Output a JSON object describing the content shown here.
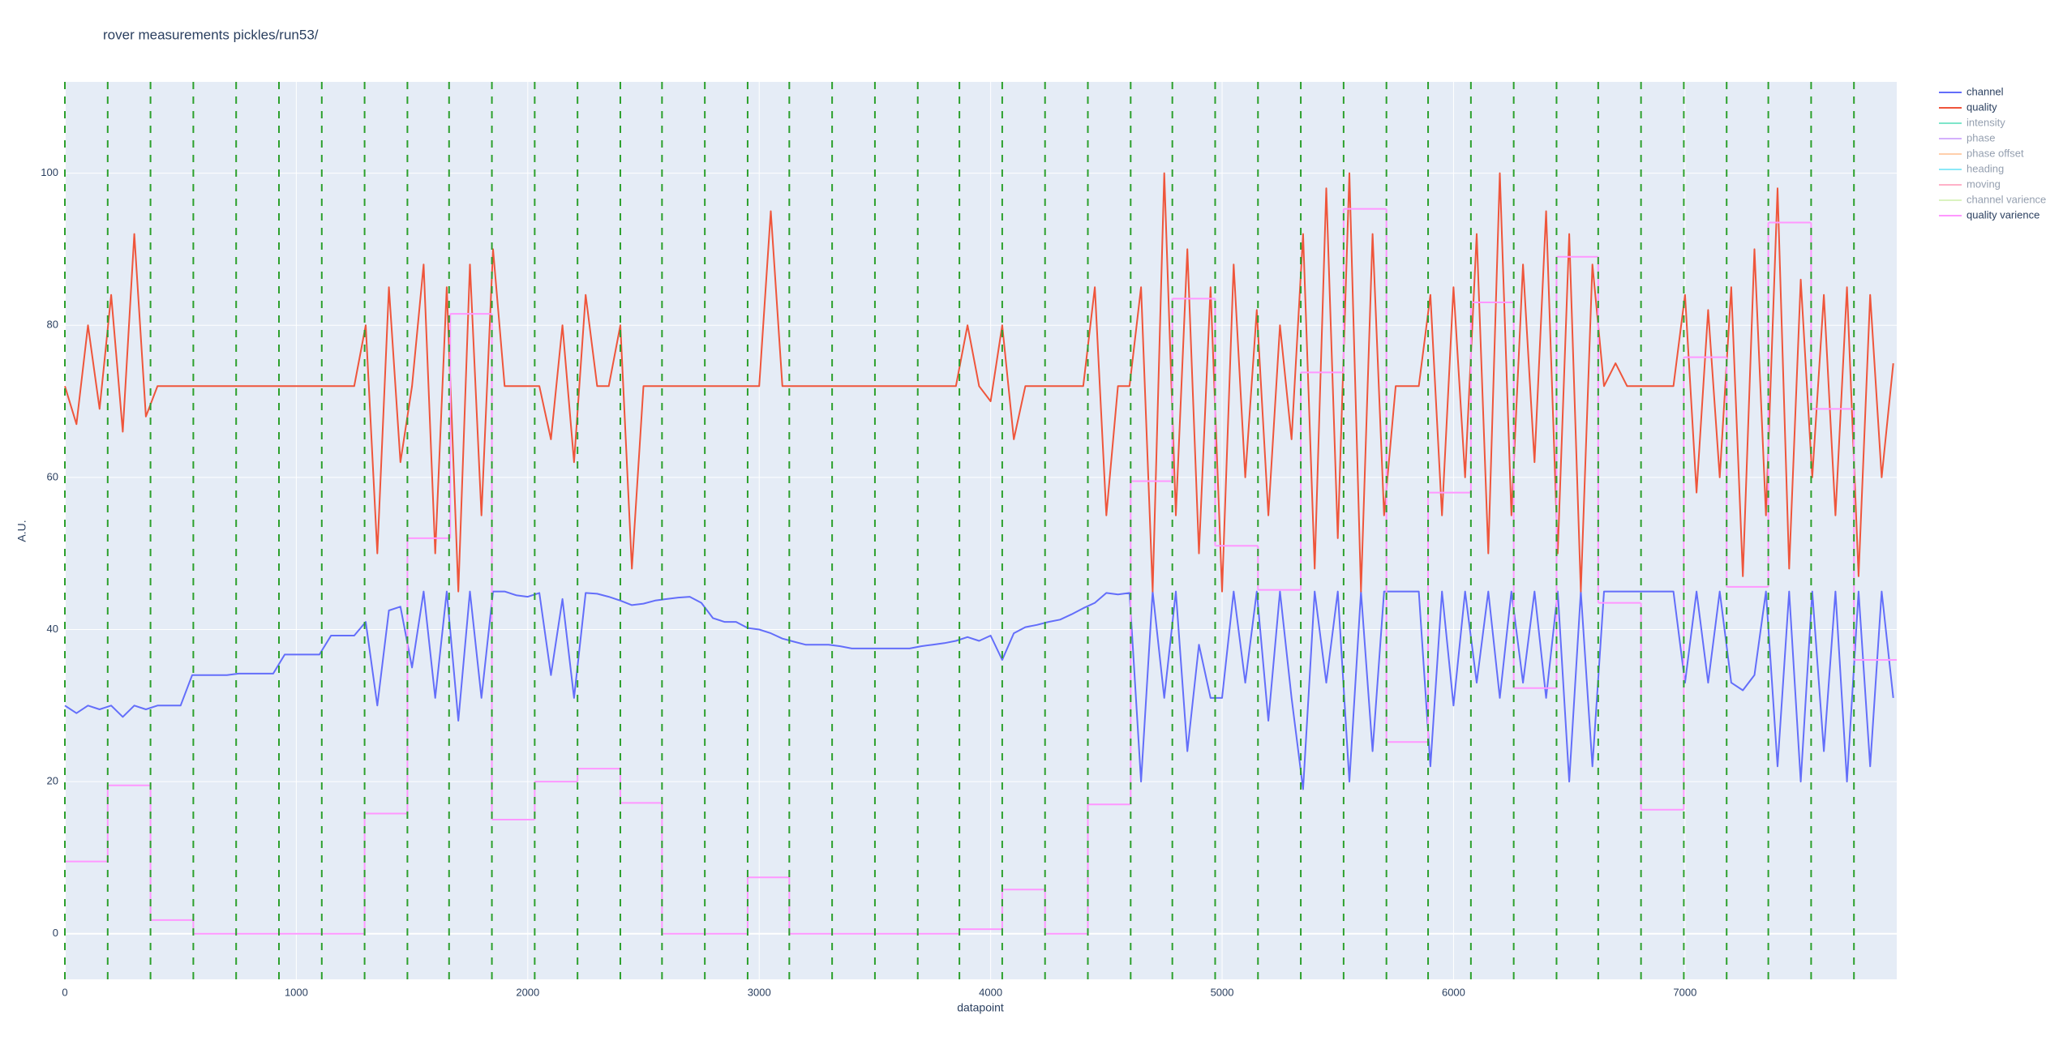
{
  "chart_data": {
    "type": "line",
    "title": "rover measurements pickles/run53/",
    "x_label": "datapoint",
    "y_label": "A.U.",
    "xlim": [
      0,
      7915
    ],
    "ylim": [
      -6,
      112
    ],
    "xticks": [
      0,
      1000,
      2000,
      3000,
      4000,
      5000,
      6000,
      7000
    ],
    "yticks": [
      0,
      20,
      40,
      60,
      80,
      100
    ],
    "grid": true,
    "legend": "right",
    "vlines": [
      0,
      185,
      370,
      555,
      740,
      925,
      1110,
      1295,
      1480,
      1660,
      1845,
      2030,
      2215,
      2400,
      2580,
      2765,
      2950,
      3130,
      3315,
      3500,
      3685,
      3865,
      4050,
      4235,
      4420,
      4605,
      4785,
      4970,
      5155,
      5340,
      5525,
      5710,
      5890,
      6075,
      6260,
      6445,
      6625,
      6810,
      6995,
      7180,
      7360,
      7545,
      7730
    ],
    "vline_color": "#2ca02c",
    "x": [
      0,
      50,
      100,
      150,
      200,
      250,
      300,
      350,
      400,
      450,
      500,
      550,
      600,
      650,
      700,
      750,
      800,
      850,
      900,
      950,
      1000,
      1050,
      1100,
      1150,
      1200,
      1250,
      1300,
      1350,
      1400,
      1450,
      1500,
      1550,
      1600,
      1650,
      1700,
      1750,
      1800,
      1850,
      1900,
      1950,
      2000,
      2050,
      2100,
      2150,
      2200,
      2250,
      2300,
      2350,
      2400,
      2450,
      2500,
      2550,
      2600,
      2650,
      2700,
      2750,
      2800,
      2850,
      2900,
      2950,
      3000,
      3050,
      3100,
      3150,
      3200,
      3250,
      3300,
      3350,
      3400,
      3450,
      3500,
      3550,
      3600,
      3650,
      3700,
      3750,
      3800,
      3850,
      3900,
      3950,
      4000,
      4050,
      4100,
      4150,
      4200,
      4250,
      4300,
      4350,
      4400,
      4450,
      4500,
      4550,
      4600,
      4650,
      4700,
      4750,
      4800,
      4850,
      4900,
      4950,
      5000,
      5050,
      5100,
      5150,
      5200,
      5250,
      5300,
      5350,
      5400,
      5450,
      5500,
      5550,
      5600,
      5650,
      5700,
      5750,
      5800,
      5850,
      5900,
      5950,
      6000,
      6050,
      6100,
      6150,
      6200,
      6250,
      6300,
      6350,
      6400,
      6450,
      6500,
      6550,
      6600,
      6650,
      6700,
      6750,
      6800,
      6850,
      6900,
      6950,
      7000,
      7050,
      7100,
      7150,
      7200,
      7250,
      7300,
      7350,
      7400,
      7450,
      7500,
      7550,
      7600,
      7650,
      7700,
      7750,
      7800,
      7850,
      7900
    ],
    "series": [
      {
        "name": "channel",
        "color": "#636efa",
        "visible": true,
        "values": [
          30,
          29,
          30,
          29.5,
          30,
          28.5,
          30,
          29.5,
          30,
          30,
          30,
          34,
          34,
          34,
          34,
          34.2,
          34.2,
          34.2,
          34.2,
          36.7,
          36.7,
          36.7,
          36.7,
          39.2,
          39.2,
          39.2,
          41,
          30,
          42.5,
          43,
          35,
          45,
          31,
          45,
          28,
          45,
          31,
          45,
          45,
          44.5,
          44.3,
          44.8,
          34,
          44,
          31,
          44.8,
          44.7,
          44.3,
          43.8,
          43.2,
          43.4,
          43.8,
          44,
          44.2,
          44.3,
          43.5,
          41.5,
          41,
          41,
          40.2,
          40,
          39.5,
          38.8,
          38.4,
          38,
          38,
          38,
          37.8,
          37.5,
          37.5,
          37.5,
          37.5,
          37.5,
          37.5,
          37.8,
          38,
          38.2,
          38.5,
          39,
          38.5,
          39.2,
          36,
          39.5,
          40.3,
          40.6,
          41,
          41.3,
          42,
          42.8,
          43.5,
          44.8,
          44.6,
          44.8,
          20,
          45,
          31,
          45,
          24,
          38,
          31,
          31,
          45,
          33,
          45,
          28,
          45,
          31,
          19,
          45,
          33,
          45,
          20,
          45,
          24,
          45,
          45,
          45,
          45,
          22,
          45,
          30,
          45,
          33,
          45,
          31,
          45,
          33,
          45,
          31,
          45,
          20,
          45,
          22,
          45,
          45,
          45,
          45,
          45,
          45,
          45,
          33,
          45,
          33,
          45,
          33,
          32,
          34,
          45,
          22,
          45,
          20,
          45,
          24,
          45,
          20,
          45,
          22,
          45,
          31
        ]
      },
      {
        "name": "quality",
        "color": "#EF553B",
        "visible": true,
        "values": [
          72,
          67,
          80,
          69,
          84,
          66,
          92,
          68,
          72,
          72,
          72,
          72,
          72,
          72,
          72,
          72,
          72,
          72,
          72,
          72,
          72,
          72,
          72,
          72,
          72,
          72,
          80,
          50,
          85,
          62,
          72,
          88,
          50,
          85,
          45,
          88,
          55,
          90,
          72,
          72,
          72,
          72,
          65,
          80,
          62,
          84,
          72,
          72,
          80,
          48,
          72,
          72,
          72,
          72,
          72,
          72,
          72,
          72,
          72,
          72,
          72,
          95,
          72,
          72,
          72,
          72,
          72,
          72,
          72,
          72,
          72,
          72,
          72,
          72,
          72,
          72,
          72,
          72,
          80,
          72,
          70,
          80,
          65,
          72,
          72,
          72,
          72,
          72,
          72,
          85,
          55,
          72,
          72,
          85,
          45,
          100,
          55,
          90,
          50,
          85,
          45,
          88,
          60,
          82,
          55,
          80,
          65,
          92,
          48,
          98,
          52,
          100,
          45,
          92,
          55,
          72,
          72,
          72,
          84,
          55,
          85,
          60,
          92,
          50,
          100,
          55,
          88,
          62,
          95,
          50,
          92,
          45,
          88,
          72,
          75,
          72,
          72,
          72,
          72,
          72,
          84,
          58,
          82,
          60,
          85,
          47,
          90,
          55,
          98,
          48,
          86,
          60,
          84,
          55,
          85,
          47,
          84,
          60,
          75
        ]
      },
      {
        "name": "intensity",
        "color": "#00cc96",
        "visible": false
      },
      {
        "name": "phase",
        "color": "#ab63fa",
        "visible": false
      },
      {
        "name": "phase offset",
        "color": "#FFA15A",
        "visible": false
      },
      {
        "name": "heading",
        "color": "#19d3f3",
        "visible": false
      },
      {
        "name": "moving",
        "color": "#FF6692",
        "visible": false
      },
      {
        "name": "channel varience",
        "color": "#B6E880",
        "visible": false
      },
      {
        "name": "quality varience",
        "color": "#FF97FF",
        "visible": true,
        "shape": "hv",
        "x": [
          0,
          185,
          370,
          555,
          1295,
          1480,
          1665,
          1845,
          2030,
          2215,
          2400,
          2580,
          2950,
          3130,
          3865,
          4050,
          4235,
          4420,
          4605,
          4785,
          4970,
          5155,
          5340,
          5525,
          5710,
          5890,
          6075,
          6260,
          6445,
          6625,
          6810,
          6995,
          7180,
          7360,
          7545,
          7730
        ],
        "values": [
          9.5,
          19.5,
          1.8,
          0,
          15.8,
          52,
          81.5,
          15,
          20,
          21.7,
          17.2,
          0,
          7.4,
          0,
          0.6,
          5.8,
          0,
          17,
          59.5,
          83.5,
          51,
          45.2,
          73.8,
          95.3,
          25.2,
          58,
          83,
          32.3,
          89,
          43.5,
          16.3,
          75.8,
          45.6,
          93.5,
          69,
          36
        ]
      }
    ]
  }
}
